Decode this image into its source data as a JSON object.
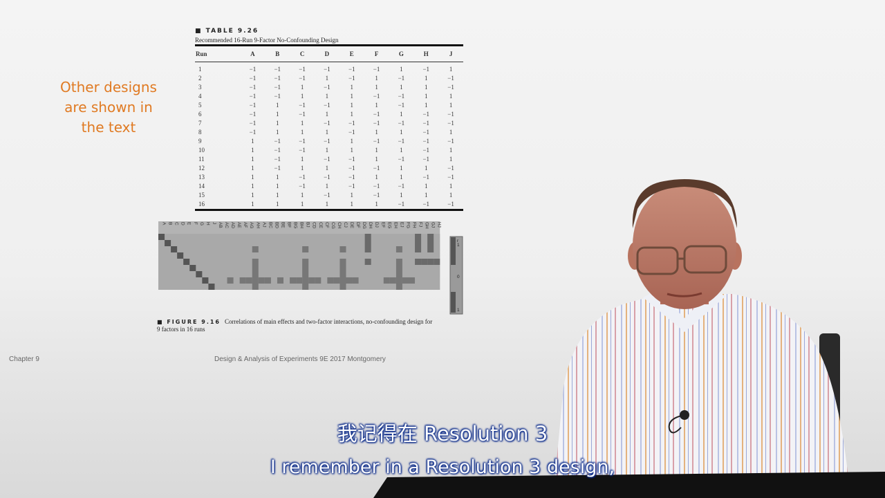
{
  "side_note": {
    "line1": "Other designs",
    "line2": "are shown in",
    "line3": "the text"
  },
  "table": {
    "label": "■ TABLE 9.26",
    "caption": "Recommended 16-Run 9-Factor No-Confounding Design",
    "headers": [
      "Run",
      "A",
      "B",
      "C",
      "D",
      "E",
      "F",
      "G",
      "H",
      "J"
    ],
    "rows": [
      [
        "1",
        "-1",
        "-1",
        "-1",
        "-1",
        "-1",
        "-1",
        "1",
        "-1",
        "1"
      ],
      [
        "2",
        "-1",
        "-1",
        "-1",
        "1",
        "-1",
        "1",
        "-1",
        "1",
        "-1"
      ],
      [
        "3",
        "-1",
        "-1",
        "1",
        "-1",
        "1",
        "1",
        "1",
        "1",
        "-1"
      ],
      [
        "4",
        "-1",
        "-1",
        "1",
        "1",
        "1",
        "-1",
        "-1",
        "1",
        "1"
      ],
      [
        "5",
        "-1",
        "1",
        "-1",
        "-1",
        "1",
        "1",
        "-1",
        "1",
        "1"
      ],
      [
        "6",
        "-1",
        "1",
        "-1",
        "1",
        "1",
        "-1",
        "1",
        "-1",
        "-1"
      ],
      [
        "7",
        "-1",
        "1",
        "1",
        "-1",
        "-1",
        "-1",
        "-1",
        "-1",
        "-1"
      ],
      [
        "8",
        "-1",
        "1",
        "1",
        "1",
        "-1",
        "1",
        "1",
        "-1",
        "1"
      ],
      [
        "9",
        "1",
        "-1",
        "-1",
        "-1",
        "1",
        "-1",
        "-1",
        "-1",
        "-1"
      ],
      [
        "10",
        "1",
        "-1",
        "-1",
        "1",
        "1",
        "1",
        "1",
        "-1",
        "1"
      ],
      [
        "11",
        "1",
        "-1",
        "1",
        "-1",
        "-1",
        "1",
        "-1",
        "-1",
        "1"
      ],
      [
        "12",
        "1",
        "-1",
        "1",
        "1",
        "-1",
        "-1",
        "1",
        "1",
        "-1"
      ],
      [
        "13",
        "1",
        "1",
        "-1",
        "-1",
        "-1",
        "1",
        "1",
        "-1",
        "-1"
      ],
      [
        "14",
        "1",
        "1",
        "-1",
        "1",
        "-1",
        "-1",
        "-1",
        "1",
        "1"
      ],
      [
        "15",
        "1",
        "1",
        "1",
        "-1",
        "1",
        "-1",
        "1",
        "1",
        "1"
      ],
      [
        "16",
        "1",
        "1",
        "1",
        "1",
        "1",
        "1",
        "-1",
        "-1",
        "-1"
      ]
    ]
  },
  "heatmap": {
    "columns": [
      "A",
      "B",
      "C",
      "D",
      "E",
      "F",
      "G",
      "H",
      "J",
      "AB",
      "AC",
      "AD",
      "AE",
      "AF",
      "AG",
      "AH",
      "AJ",
      "BC",
      "BD",
      "BE",
      "BF",
      "BG",
      "BH",
      "BJ",
      "CD",
      "CE",
      "CF",
      "CG",
      "CH",
      "CJ",
      "DE",
      "DF",
      "DG",
      "DH",
      "DJ",
      "EF",
      "EG",
      "EH",
      "EJ",
      "FG",
      "FH",
      "FJ",
      "GH",
      "GJ",
      "HJ"
    ],
    "scale_labels": [
      "r",
      "1",
      "0",
      "1"
    ],
    "dark_color": "#555555",
    "base_color": "#a9a9a9"
  },
  "figure": {
    "label": "■ FIGURE 9.16",
    "caption": "Correlations of main effects and two-factor interactions, no-confounding design for 9 factors in 16 runs"
  },
  "footer": {
    "left": "Chapter 9",
    "center": "Design & Analysis of Experiments 9E 2017 Montgomery"
  },
  "subtitles": {
    "zh": "我记得在 Resolution 3",
    "en": "I remember in a Resolution 3 design,"
  }
}
